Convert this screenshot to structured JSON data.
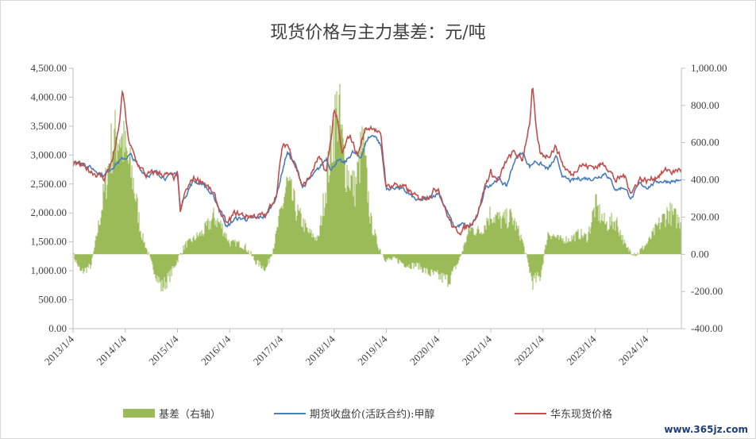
{
  "chart_data": {
    "type": "line",
    "title": "现货价格与主力基差：元/吨",
    "x_tick_labels": [
      "2013/1/4",
      "2014/1/4",
      "2015/1/4",
      "2016/1/4",
      "2017/1/4",
      "2018/1/4",
      "2019/1/4",
      "2020/1/4",
      "2021/1/4",
      "2022/1/4",
      "2023/1/4",
      "2024/1/4"
    ],
    "y_left": {
      "min": 0,
      "max": 4500,
      "ticks": [
        "0.00",
        "500.00",
        "1,000.00",
        "1,500.00",
        "2,000.00",
        "2,500.00",
        "3,000.00",
        "3,500.00",
        "4,000.00",
        "4,500.00"
      ]
    },
    "y_right": {
      "min": -400,
      "max": 1000,
      "ticks": [
        "-400.00",
        "-200.00",
        "0.00",
        "200.00",
        "400.00",
        "600.00",
        "800.00",
        "1,000.00"
      ]
    },
    "series": [
      {
        "name": "基差（右轴）",
        "type": "area",
        "axis": "right",
        "color": "#9bbb59",
        "x": [
          2013.0,
          2013.15,
          2013.35,
          2013.55,
          2013.75,
          2013.9,
          2014.0,
          2014.15,
          2014.3,
          2014.5,
          2014.7,
          2014.85,
          2015.0,
          2015.15,
          2015.3,
          2015.5,
          2015.7,
          2015.85,
          2016.0,
          2016.15,
          2016.3,
          2016.5,
          2016.7,
          2016.85,
          2017.0,
          2017.1,
          2017.3,
          2017.5,
          2017.7,
          2017.85,
          2018.0,
          2018.08,
          2018.2,
          2018.4,
          2018.55,
          2018.7,
          2018.85,
          2019.0,
          2019.2,
          2019.4,
          2019.6,
          2019.8,
          2020.0,
          2020.2,
          2020.4,
          2020.6,
          2020.8,
          2021.0,
          2021.2,
          2021.4,
          2021.6,
          2021.8,
          2021.95,
          2022.1,
          2022.3,
          2022.5,
          2022.7,
          2022.85,
          2023.0,
          2023.2,
          2023.4,
          2023.6,
          2023.8,
          2024.0,
          2024.2,
          2024.4,
          2024.6
        ],
        "values": [
          0,
          -100,
          -60,
          250,
          600,
          650,
          550,
          400,
          120,
          -50,
          -180,
          -120,
          -30,
          50,
          80,
          120,
          200,
          150,
          60,
          60,
          40,
          -40,
          -80,
          50,
          250,
          380,
          220,
          120,
          80,
          380,
          700,
          800,
          480,
          350,
          600,
          180,
          40,
          -30,
          -30,
          -60,
          -60,
          -100,
          -120,
          -140,
          -30,
          140,
          120,
          220,
          180,
          200,
          80,
          -150,
          -120,
          120,
          80,
          80,
          110,
          90,
          260,
          160,
          180,
          30,
          0,
          60,
          150,
          230,
          180
        ]
      },
      {
        "name": "期货收盘价(活跃合约):甲醇",
        "type": "line",
        "axis": "left",
        "color": "#4a7ebb",
        "x": [
          2013.0,
          2013.2,
          2013.4,
          2013.6,
          2013.75,
          2013.9,
          2014.0,
          2014.1,
          2014.25,
          2014.4,
          2014.6,
          2014.8,
          2014.95,
          2015.0,
          2015.05,
          2015.15,
          2015.3,
          2015.5,
          2015.7,
          2015.85,
          2015.95,
          2016.1,
          2016.3,
          2016.5,
          2016.7,
          2016.9,
          2017.0,
          2017.1,
          2017.25,
          2017.4,
          2017.55,
          2017.7,
          2017.85,
          2017.95,
          2018.05,
          2018.2,
          2018.35,
          2018.5,
          2018.65,
          2018.78,
          2018.9,
          2019.0,
          2019.2,
          2019.4,
          2019.6,
          2019.8,
          2020.0,
          2020.15,
          2020.3,
          2020.45,
          2020.6,
          2020.75,
          2020.9,
          2021.0,
          2021.15,
          2021.3,
          2021.45,
          2021.6,
          2021.75,
          2021.85,
          2021.95,
          2022.1,
          2022.25,
          2022.4,
          2022.55,
          2022.7,
          2022.85,
          2023.0,
          2023.2,
          2023.4,
          2023.55,
          2023.7,
          2023.85,
          2024.0,
          2024.2,
          2024.4,
          2024.6
        ],
        "values": [
          2900,
          2850,
          2750,
          2650,
          2800,
          2900,
          2950,
          3000,
          2800,
          2650,
          2700,
          2600,
          2700,
          2650,
          2100,
          2300,
          2550,
          2500,
          2250,
          2000,
          1750,
          1900,
          1900,
          1900,
          1950,
          2300,
          2700,
          3050,
          2850,
          2450,
          2600,
          2750,
          2950,
          2750,
          2900,
          2850,
          3050,
          2950,
          3300,
          3350,
          3150,
          2400,
          2450,
          2350,
          2200,
          2250,
          2350,
          2050,
          1750,
          1800,
          1750,
          1950,
          2450,
          2500,
          2600,
          2450,
          2900,
          3050,
          2800,
          2900,
          2850,
          2750,
          2950,
          2600,
          2550,
          2600,
          2600,
          2600,
          2700,
          2400,
          2450,
          2250,
          2500,
          2450,
          2550,
          2550,
          2550
        ]
      },
      {
        "name": "华东现货价格",
        "type": "line",
        "axis": "left",
        "color": "#c0504d",
        "x": [
          2013.0,
          2013.2,
          2013.4,
          2013.6,
          2013.75,
          2013.88,
          2013.95,
          2014.05,
          2014.2,
          2014.4,
          2014.6,
          2014.8,
          2014.95,
          2015.0,
          2015.05,
          2015.15,
          2015.3,
          2015.5,
          2015.7,
          2015.85,
          2015.95,
          2016.1,
          2016.3,
          2016.5,
          2016.7,
          2016.9,
          2017.0,
          2017.1,
          2017.25,
          2017.4,
          2017.55,
          2017.7,
          2017.85,
          2017.95,
          2018.0,
          2018.05,
          2018.15,
          2018.3,
          2018.45,
          2018.6,
          2018.75,
          2018.9,
          2019.0,
          2019.2,
          2019.4,
          2019.6,
          2019.8,
          2020.0,
          2020.15,
          2020.3,
          2020.45,
          2020.6,
          2020.75,
          2020.9,
          2021.0,
          2021.15,
          2021.3,
          2021.45,
          2021.6,
          2021.75,
          2021.8,
          2021.87,
          2021.95,
          2022.1,
          2022.25,
          2022.4,
          2022.55,
          2022.7,
          2022.85,
          2023.0,
          2023.2,
          2023.4,
          2023.55,
          2023.7,
          2023.85,
          2024.0,
          2024.2,
          2024.4,
          2024.5,
          2024.6
        ],
        "values": [
          2850,
          2800,
          2700,
          2600,
          2900,
          3450,
          4150,
          3300,
          2900,
          2650,
          2700,
          2650,
          2600,
          2700,
          2000,
          2350,
          2600,
          2550,
          2300,
          1950,
          1800,
          2000,
          1950,
          1950,
          1950,
          2350,
          3100,
          3200,
          2850,
          2450,
          2650,
          2950,
          2700,
          3350,
          3800,
          3650,
          3000,
          3350,
          3000,
          3450,
          3500,
          3300,
          2450,
          2500,
          2400,
          2250,
          2300,
          2450,
          2000,
          1700,
          1700,
          1800,
          2000,
          2500,
          2700,
          2550,
          2900,
          3050,
          2900,
          3600,
          4200,
          3400,
          3000,
          3000,
          3150,
          2800,
          2650,
          2850,
          2800,
          2800,
          2850,
          2550,
          2650,
          2350,
          2600,
          2550,
          2650,
          2750,
          2700,
          2750
        ]
      }
    ],
    "legend": "bottom",
    "grid": false
  },
  "watermark": "www.365jz.com"
}
